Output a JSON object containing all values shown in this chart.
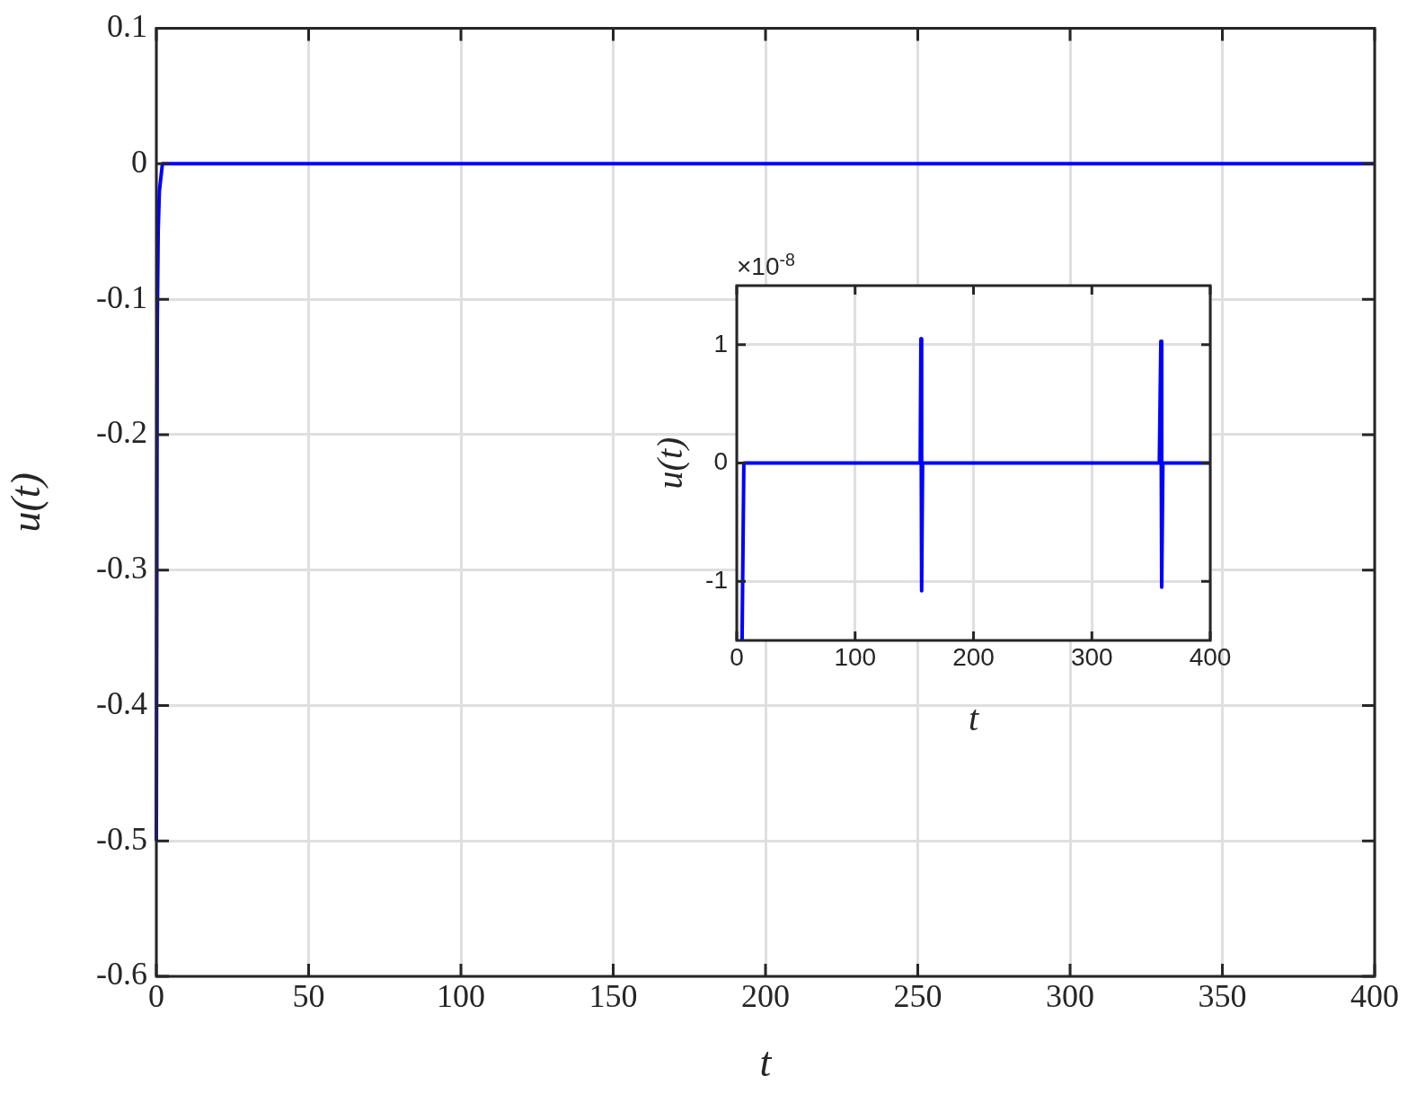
{
  "chart_data": [
    {
      "type": "line",
      "xlabel": "t",
      "ylabel": "u(t)",
      "x": [
        0,
        0.3,
        0.6,
        1,
        2,
        400
      ],
      "values": [
        -0.5,
        -0.12,
        -0.05,
        -0.02,
        0,
        0
      ],
      "color": "#0000ff",
      "marker": "none",
      "xlim": [
        0,
        400
      ],
      "ylim": [
        -0.6,
        0.1
      ],
      "xticks": [
        0,
        50,
        100,
        150,
        200,
        250,
        300,
        350,
        400
      ],
      "yticks": [
        -0.6,
        -0.5,
        -0.4,
        -0.3,
        -0.2,
        -0.1,
        0,
        0.1
      ],
      "grid": true
    },
    {
      "type": "line",
      "xlabel": "t",
      "ylabel": "u(t)",
      "annotations": [
        "×10$^{-8}$"
      ],
      "x": [
        4.5,
        6,
        155,
        155.6,
        156.2,
        157,
        357,
        358.3,
        359,
        360,
        400
      ],
      "values": [
        -1.5,
        0,
        0,
        1.05,
        -1.08,
        0,
        0,
        1.03,
        -1.05,
        0,
        0
      ],
      "color": "#0000ff",
      "marker": "none",
      "xlim": [
        0,
        400
      ],
      "ylim": [
        -1.5,
        1.5
      ],
      "xticks": [
        0,
        100,
        200,
        300,
        400
      ],
      "yticks": [
        -1,
        0,
        1
      ],
      "grid": true
    }
  ]
}
